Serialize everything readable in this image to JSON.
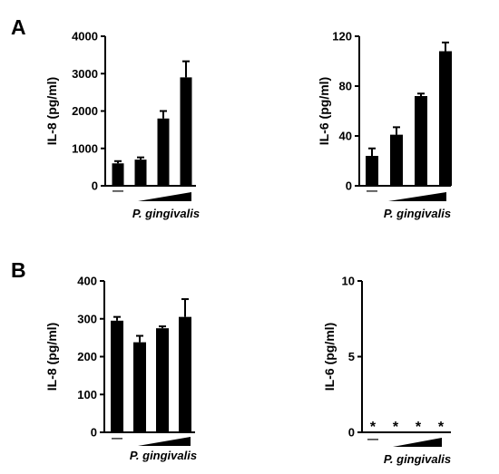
{
  "panels": [
    {
      "letter": "A"
    },
    {
      "letter": "B"
    }
  ],
  "chart_data": [
    {
      "type": "bar",
      "panel": "A",
      "ylabel": "IL-8 (pg/ml)",
      "ylim": [
        0,
        4000
      ],
      "yticks": [
        "0",
        "1000",
        "2000",
        "3000",
        "4000"
      ],
      "ytick_values": [
        0,
        1000,
        2000,
        3000,
        4000
      ],
      "values": [
        600,
        700,
        1800,
        2900
      ],
      "errors": [
        60,
        60,
        200,
        430
      ],
      "bar_markers": [
        "",
        "",
        "",
        ""
      ],
      "control_label": "—",
      "xlabel": "P. gingivalis",
      "grid": false
    },
    {
      "type": "bar",
      "panel": "A",
      "ylabel": "IL-6 (pg/ml)",
      "ylim": [
        0,
        120
      ],
      "yticks": [
        "0",
        "40",
        "80",
        "120"
      ],
      "ytick_values": [
        0,
        40,
        80,
        120
      ],
      "values": [
        24,
        41,
        72,
        108
      ],
      "errors": [
        6,
        6,
        2,
        7
      ],
      "bar_markers": [
        "",
        "",
        "",
        ""
      ],
      "control_label": "—",
      "xlabel": "P. gingivalis",
      "grid": false
    },
    {
      "type": "bar",
      "panel": "B",
      "ylabel": "IL-8 (pg/ml)",
      "ylim": [
        0,
        400
      ],
      "yticks": [
        "0",
        "100",
        "200",
        "300",
        "400"
      ],
      "ytick_values": [
        0,
        100,
        200,
        300,
        400
      ],
      "values": [
        295,
        238,
        275,
        305
      ],
      "errors": [
        10,
        17,
        5,
        47
      ],
      "bar_markers": [
        "",
        "",
        "",
        ""
      ],
      "control_label": "—",
      "xlabel": "P. gingivalis",
      "grid": false
    },
    {
      "type": "bar",
      "panel": "B",
      "ylabel": "IL-6 (pg/ml)",
      "ylim": [
        0,
        10
      ],
      "yticks": [
        "0",
        "5",
        "10"
      ],
      "ytick_values": [
        0,
        5,
        10
      ],
      "values": [
        0,
        0,
        0,
        0
      ],
      "errors": [
        0,
        0,
        0,
        0
      ],
      "bar_markers": [
        "*",
        "*",
        "*",
        "*"
      ],
      "control_label": "—",
      "xlabel": "P. gingivalis",
      "grid": false
    }
  ]
}
